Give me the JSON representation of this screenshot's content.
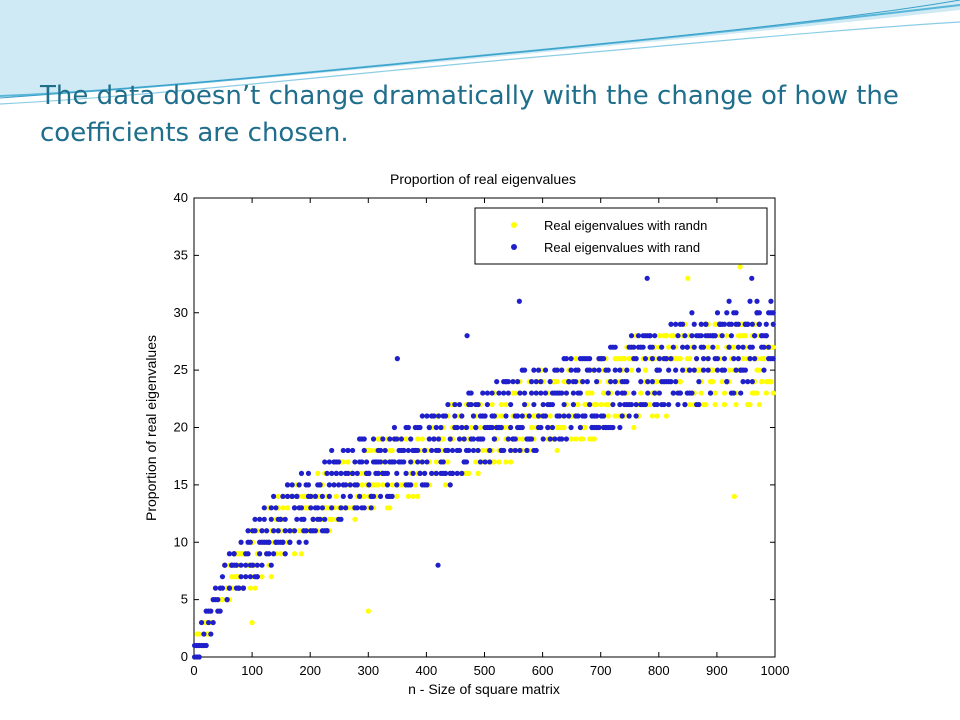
{
  "slide": {
    "title": "The data doesn’t change dramatically with the change of how the coefficients are chosen."
  },
  "colors": {
    "title": "#1f6e8c",
    "randn": "#ffff00",
    "rand": "#1f1fcc",
    "wave_light": "#cfeaf4",
    "wave_dark": "#5ab6d9"
  },
  "chart_data": {
    "type": "scatter",
    "title": "Proportion of real eigenvalues",
    "xlabel": "n - Size of square matrix",
    "ylabel": "Proportion of real eigenvalues",
    "xlim": [
      0,
      1000
    ],
    "ylim": [
      0,
      40
    ],
    "xticks": [
      0,
      100,
      200,
      300,
      400,
      500,
      600,
      700,
      800,
      900,
      1000
    ],
    "yticks": [
      0,
      5,
      10,
      15,
      20,
      25,
      30,
      35,
      40
    ],
    "grid": false,
    "legend": {
      "placement": "top-right",
      "entries": [
        "Real eigenvalues with randn",
        "Real eigenvalues with rand"
      ]
    },
    "series": [
      {
        "name": "Real eigenvalues with randn",
        "color": "#ffff00",
        "trend_knots_x": [
          0,
          50,
          100,
          200,
          300,
          400,
          500,
          600,
          700,
          800,
          900,
          1000
        ],
        "trend_knots_y": [
          0,
          6,
          9,
          13,
          15.5,
          17.5,
          19.5,
          21.5,
          23,
          24.5,
          25.5,
          26
        ],
        "spread_y": [
          2,
          6,
          8
        ],
        "outliers": [
          [
            300,
            4
          ],
          [
            930,
            14
          ],
          [
            940,
            34
          ],
          [
            100,
            3
          ],
          [
            850,
            33
          ]
        ]
      },
      {
        "name": "Real eigenvalues with rand",
        "color": "#1f1fcc",
        "trend_knots_x": [
          0,
          50,
          100,
          200,
          300,
          400,
          500,
          600,
          700,
          800,
          900,
          1000
        ],
        "trend_knots_y": [
          0,
          6.5,
          9.5,
          13.5,
          16,
          18,
          20,
          22,
          23.5,
          25,
          26.5,
          27.5
        ],
        "spread_y": [
          2,
          6,
          8
        ],
        "outliers": [
          [
            350,
            26
          ],
          [
            470,
            28
          ],
          [
            560,
            31
          ],
          [
            420,
            8
          ],
          [
            780,
            33
          ],
          [
            960,
            33
          ]
        ]
      }
    ]
  }
}
